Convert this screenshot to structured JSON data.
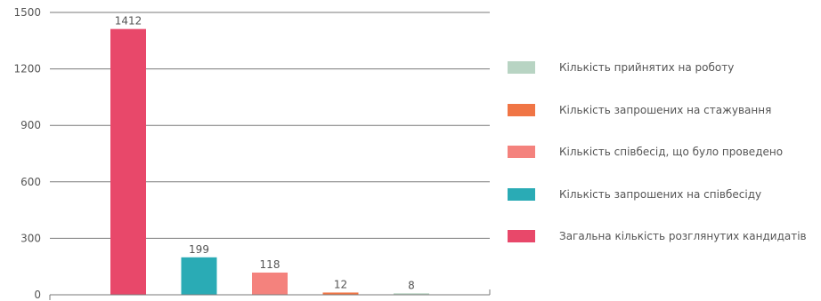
{
  "chart_data": {
    "type": "bar",
    "ylim": [
      0,
      1500
    ],
    "yticks": [
      0,
      300,
      600,
      900,
      1200,
      1500
    ],
    "grid": true,
    "legend_placement": "right",
    "categories": [
      "Загальна кількість розглянутих кандидатів",
      "Кількість запрошених на співбесіду",
      "Кількість співбесід, що було проведено",
      "Кількість запрошених на стажування",
      "Кількість прийнятих на роботу"
    ],
    "values": [
      1412,
      199,
      118,
      12,
      8
    ],
    "colors": [
      "#e8486a",
      "#2aabb5",
      "#f4827d",
      "#f07545",
      "#b8d4c3"
    ]
  }
}
